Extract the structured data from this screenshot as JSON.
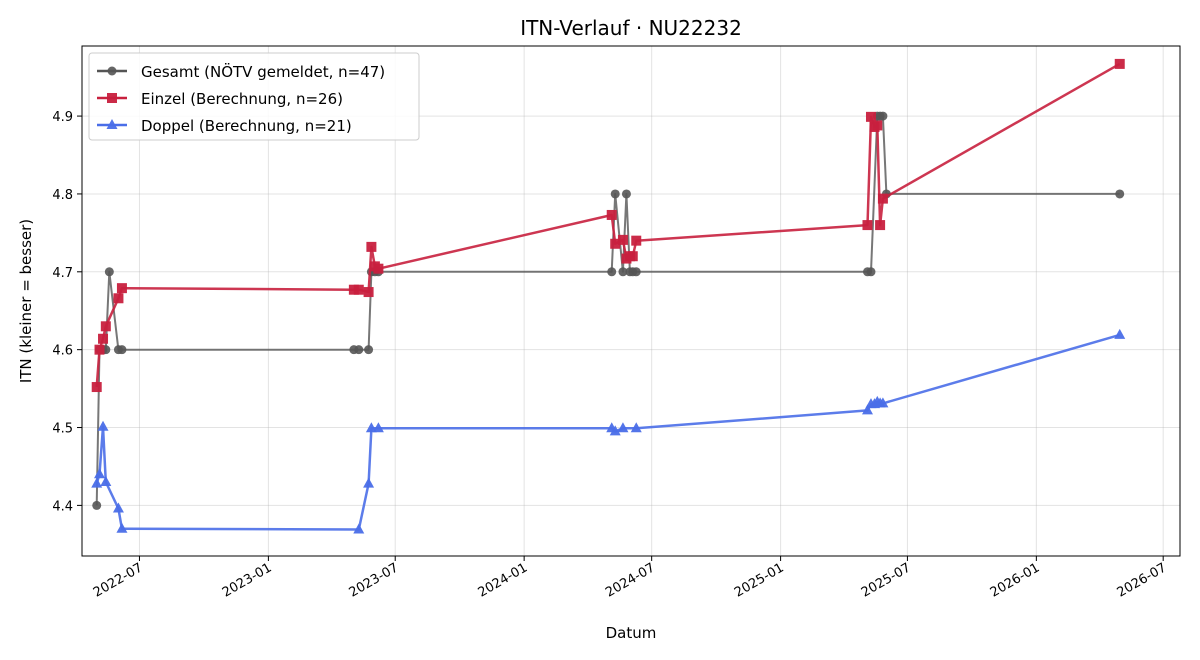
{
  "chart_data": {
    "type": "line",
    "title": "ITN-Verlauf · NU22232",
    "xlabel": "Datum",
    "ylabel": "ITN  (kleiner = besser)",
    "x_type": "date",
    "xlim": [
      "2022-04-10",
      "2026-07-25"
    ],
    "ylim": [
      4.335,
      4.99
    ],
    "x_ticks": [
      "2022-07-01",
      "2023-01-01",
      "2023-07-01",
      "2024-01-01",
      "2024-07-01",
      "2025-01-01",
      "2025-07-01",
      "2026-01-01",
      "2026-07-01"
    ],
    "x_tick_labels": [
      "2022-07",
      "2023-01",
      "2023-07",
      "2024-01",
      "2024-07",
      "2025-01",
      "2025-07",
      "2026-01",
      "2026-07"
    ],
    "y_ticks": [
      4.4,
      4.5,
      4.6,
      4.7,
      4.8,
      4.9
    ],
    "y_tick_labels": [
      "4.4",
      "4.5",
      "4.6",
      "4.7",
      "4.8",
      "4.9"
    ],
    "grid": true,
    "legend_position": "top-left",
    "series": [
      {
        "name": "Gesamt (NÖTV gemeldet, n=47)",
        "color": "#555555",
        "marker": "circle",
        "points": [
          [
            "2022-05-01",
            4.4
          ],
          [
            "2022-05-05",
            4.6
          ],
          [
            "2022-05-10",
            4.6
          ],
          [
            "2022-05-14",
            4.6
          ],
          [
            "2022-05-19",
            4.7
          ],
          [
            "2022-06-01",
            4.6
          ],
          [
            "2022-06-06",
            4.6
          ],
          [
            "2023-05-03",
            4.6
          ],
          [
            "2023-05-10",
            4.6
          ],
          [
            "2023-05-24",
            4.6
          ],
          [
            "2023-05-28",
            4.7
          ],
          [
            "2023-06-02",
            4.7
          ],
          [
            "2023-06-07",
            4.7
          ],
          [
            "2024-05-05",
            4.7
          ],
          [
            "2024-05-10",
            4.8
          ],
          [
            "2024-05-21",
            4.7
          ],
          [
            "2024-05-26",
            4.8
          ],
          [
            "2024-05-31",
            4.7
          ],
          [
            "2024-06-04",
            4.7
          ],
          [
            "2024-06-09",
            4.7
          ],
          [
            "2025-05-05",
            4.7
          ],
          [
            "2025-05-10",
            4.7
          ],
          [
            "2025-05-19",
            4.9
          ],
          [
            "2025-05-23",
            4.9
          ],
          [
            "2025-05-27",
            4.9
          ],
          [
            "2025-06-01",
            4.8
          ],
          [
            "2026-04-30",
            4.8
          ]
        ]
      },
      {
        "name": "Einzel (Berechnung, n=26)",
        "color": "#c8203e",
        "marker": "square",
        "points": [
          [
            "2022-05-01",
            4.552
          ],
          [
            "2022-05-05",
            4.6
          ],
          [
            "2022-05-10",
            4.614
          ],
          [
            "2022-05-14",
            4.63
          ],
          [
            "2022-06-01",
            4.666
          ],
          [
            "2022-06-06",
            4.679
          ],
          [
            "2023-05-03",
            4.677
          ],
          [
            "2023-05-10",
            4.677
          ],
          [
            "2023-05-24",
            4.674
          ],
          [
            "2023-05-28",
            4.732
          ],
          [
            "2023-06-02",
            4.707
          ],
          [
            "2023-06-07",
            4.704
          ],
          [
            "2024-05-05",
            4.773
          ],
          [
            "2024-05-10",
            4.736
          ],
          [
            "2024-05-21",
            4.741
          ],
          [
            "2024-05-26",
            4.717
          ],
          [
            "2024-05-31",
            4.72
          ],
          [
            "2024-06-04",
            4.72
          ],
          [
            "2024-06-09",
            4.74
          ],
          [
            "2025-05-05",
            4.76
          ],
          [
            "2025-05-10",
            4.899
          ],
          [
            "2025-05-15",
            4.886
          ],
          [
            "2025-05-19",
            4.888
          ],
          [
            "2025-05-23",
            4.76
          ],
          [
            "2025-05-27",
            4.794
          ],
          [
            "2026-04-30",
            4.967
          ]
        ]
      },
      {
        "name": "Doppel (Berechnung, n=21)",
        "color": "#4a6ee8",
        "marker": "triangle",
        "points": [
          [
            "2022-05-01",
            4.428
          ],
          [
            "2022-05-05",
            4.44
          ],
          [
            "2022-05-10",
            4.501
          ],
          [
            "2022-05-14",
            4.43
          ],
          [
            "2022-06-01",
            4.396
          ],
          [
            "2022-06-06",
            4.37
          ],
          [
            "2023-05-10",
            4.369
          ],
          [
            "2023-05-24",
            4.428
          ],
          [
            "2023-05-28",
            4.499
          ],
          [
            "2023-06-07",
            4.499
          ],
          [
            "2024-05-05",
            4.499
          ],
          [
            "2024-05-10",
            4.495
          ],
          [
            "2024-05-21",
            4.499
          ],
          [
            "2024-06-09",
            4.499
          ],
          [
            "2025-05-05",
            4.522
          ],
          [
            "2025-05-10",
            4.53
          ],
          [
            "2025-05-15",
            4.53
          ],
          [
            "2025-05-19",
            4.533
          ],
          [
            "2025-05-23",
            4.531
          ],
          [
            "2025-05-27",
            4.531
          ],
          [
            "2026-04-30",
            4.619
          ]
        ]
      }
    ]
  }
}
